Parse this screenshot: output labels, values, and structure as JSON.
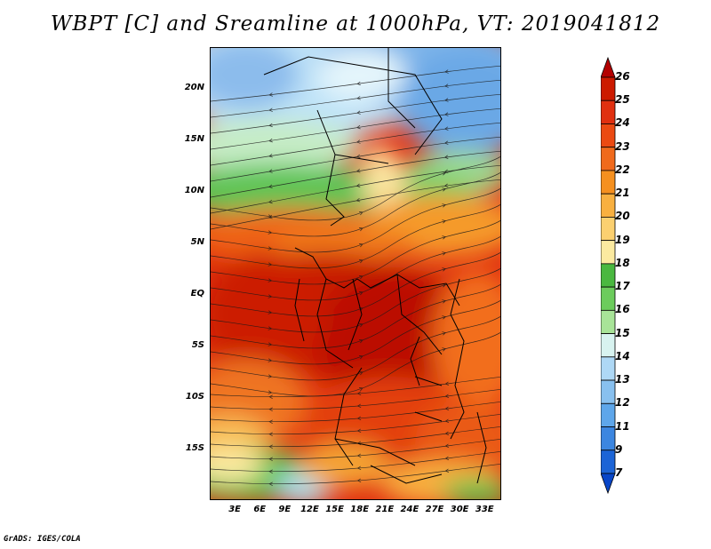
{
  "title": "WBPT [C] and Sreamline at 1000hPa, VT: 2019041812",
  "credit": "GrADS: IGES/COLA",
  "map": {
    "lat_labels": [
      "20N",
      "15N",
      "10N",
      "5N",
      "EQ",
      "5S",
      "10S",
      "15S"
    ],
    "lat_values": [
      20,
      15,
      10,
      5,
      0,
      -5,
      -10,
      -15
    ],
    "lon_labels": [
      "3E",
      "6E",
      "9E",
      "12E",
      "15E",
      "18E",
      "21E",
      "24E",
      "27E",
      "30E",
      "33E"
    ],
    "lon_values": [
      3,
      6,
      9,
      12,
      15,
      18,
      21,
      24,
      27,
      30,
      33
    ],
    "lon_range": [
      0,
      35
    ],
    "lat_range": [
      -20,
      24
    ]
  },
  "colorbar": {
    "levels": [
      "26",
      "25",
      "24",
      "23",
      "22",
      "21",
      "20",
      "19",
      "18",
      "17",
      "16",
      "15",
      "14",
      "13",
      "12",
      "11",
      "9",
      "7"
    ],
    "colors": [
      "#b30000",
      "#cc1a00",
      "#e03010",
      "#eb4a12",
      "#f06a1c",
      "#f5901f",
      "#f8b040",
      "#fbd070",
      "#fbeaa0",
      "#4ab840",
      "#6ccc5c",
      "#a8e498",
      "#d8f3f0",
      "#aed8f5",
      "#88c0ef",
      "#5ea6ea",
      "#3c86e0",
      "#1c64d6",
      "#0846c8"
    ]
  }
}
